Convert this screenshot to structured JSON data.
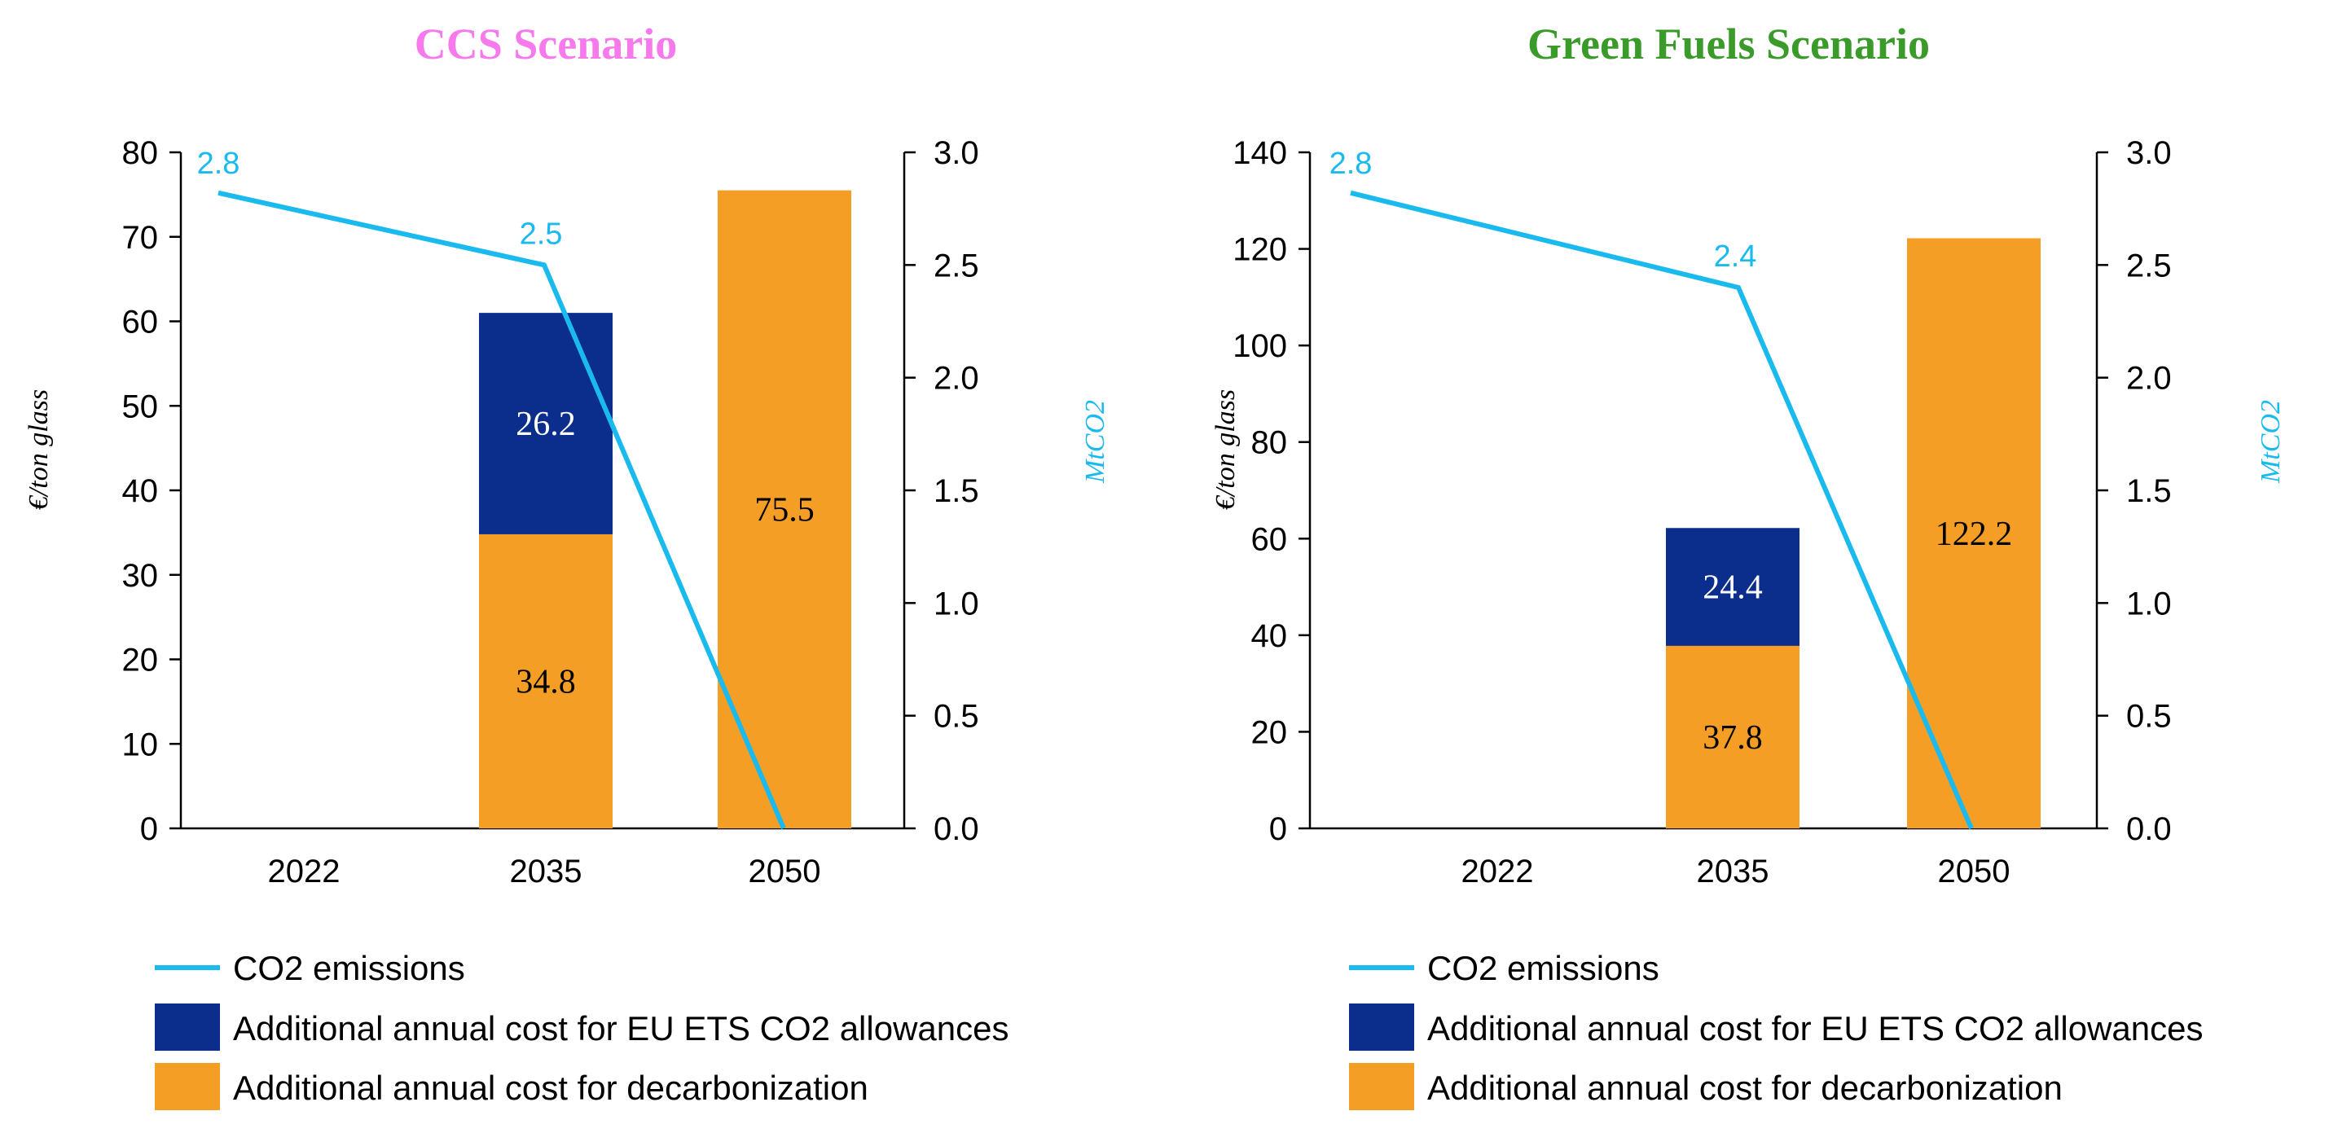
{
  "colors": {
    "line": "#1ABAEF",
    "ets": "#0B2D8C",
    "decarb": "#F59E26",
    "title_left": "#F67AEC",
    "title_right": "#3A9A2A",
    "axis": "#000000"
  },
  "chart_data": [
    {
      "type": "bar",
      "title": "CCS Scenario",
      "categories": [
        "2022",
        "2035",
        "2050"
      ],
      "ylabel": "€/ton glass",
      "y2label": "MtCO2",
      "ylim": [
        0,
        80
      ],
      "yticks": [
        0,
        10,
        20,
        30,
        40,
        50,
        60,
        70,
        80
      ],
      "ytick_labels": [
        "0",
        "10",
        "20",
        "30",
        "40",
        "50",
        "60",
        "70",
        "80"
      ],
      "y2lim": [
        0,
        3.0
      ],
      "y2ticks": [
        0,
        0.5,
        1.0,
        1.5,
        2.0,
        2.5,
        3.0
      ],
      "y2tick_labels": [
        "0.0",
        "0.5",
        "1.0",
        "1.5",
        "2.0",
        "2.5",
        "3.0"
      ],
      "series": [
        {
          "name": "Additional annual cost for decarbonization",
          "kind": "bar",
          "values": [
            null,
            34.8,
            75.5
          ],
          "labels": [
            "",
            "34.8",
            "75.5"
          ]
        },
        {
          "name": "Additional annual cost for EU ETS CO2 allowances",
          "kind": "bar",
          "values": [
            null,
            26.2,
            null
          ],
          "labels": [
            "",
            "26.2",
            ""
          ]
        },
        {
          "name": "CO2 emissions",
          "kind": "line",
          "axis": "y2",
          "values": [
            2.82,
            2.5,
            0.0
          ],
          "labels": [
            "2.8",
            "2.5",
            ""
          ]
        }
      ]
    },
    {
      "type": "bar",
      "title": "Green Fuels Scenario",
      "categories": [
        "2022",
        "2035",
        "2050"
      ],
      "ylabel": "€/ton glass",
      "y2label": "MtCO2",
      "ylim": [
        0,
        140
      ],
      "yticks": [
        0,
        20,
        40,
        60,
        80,
        100,
        120,
        140
      ],
      "ytick_labels": [
        "0",
        "20",
        "40",
        "60",
        "80",
        "100",
        "120",
        "140"
      ],
      "y2lim": [
        0,
        3.0
      ],
      "y2ticks": [
        0,
        0.5,
        1.0,
        1.5,
        2.0,
        2.5,
        3.0
      ],
      "y2tick_labels": [
        "0.0",
        "0.5",
        "1.0",
        "1.5",
        "2.0",
        "2.5",
        "3.0"
      ],
      "series": [
        {
          "name": "Additional annual cost for decarbonization",
          "kind": "bar",
          "values": [
            null,
            37.8,
            122.2
          ],
          "labels": [
            "",
            "37.8",
            "122.2"
          ]
        },
        {
          "name": "Additional annual cost for EU ETS CO2 allowances",
          "kind": "bar",
          "values": [
            null,
            24.4,
            null
          ],
          "labels": [
            "",
            "24.4",
            ""
          ]
        },
        {
          "name": "CO2 emissions",
          "kind": "line",
          "axis": "y2",
          "values": [
            2.82,
            2.4,
            0.0
          ],
          "labels": [
            "2.8",
            "2.4",
            ""
          ]
        }
      ]
    }
  ],
  "legend": {
    "items": [
      {
        "label": "CO2 emissions",
        "type": "line"
      },
      {
        "label": "Additional annual cost for EU ETS CO2 allowances",
        "type": "ets"
      },
      {
        "label": "Additional annual cost for decarbonization",
        "type": "decarb"
      }
    ]
  }
}
